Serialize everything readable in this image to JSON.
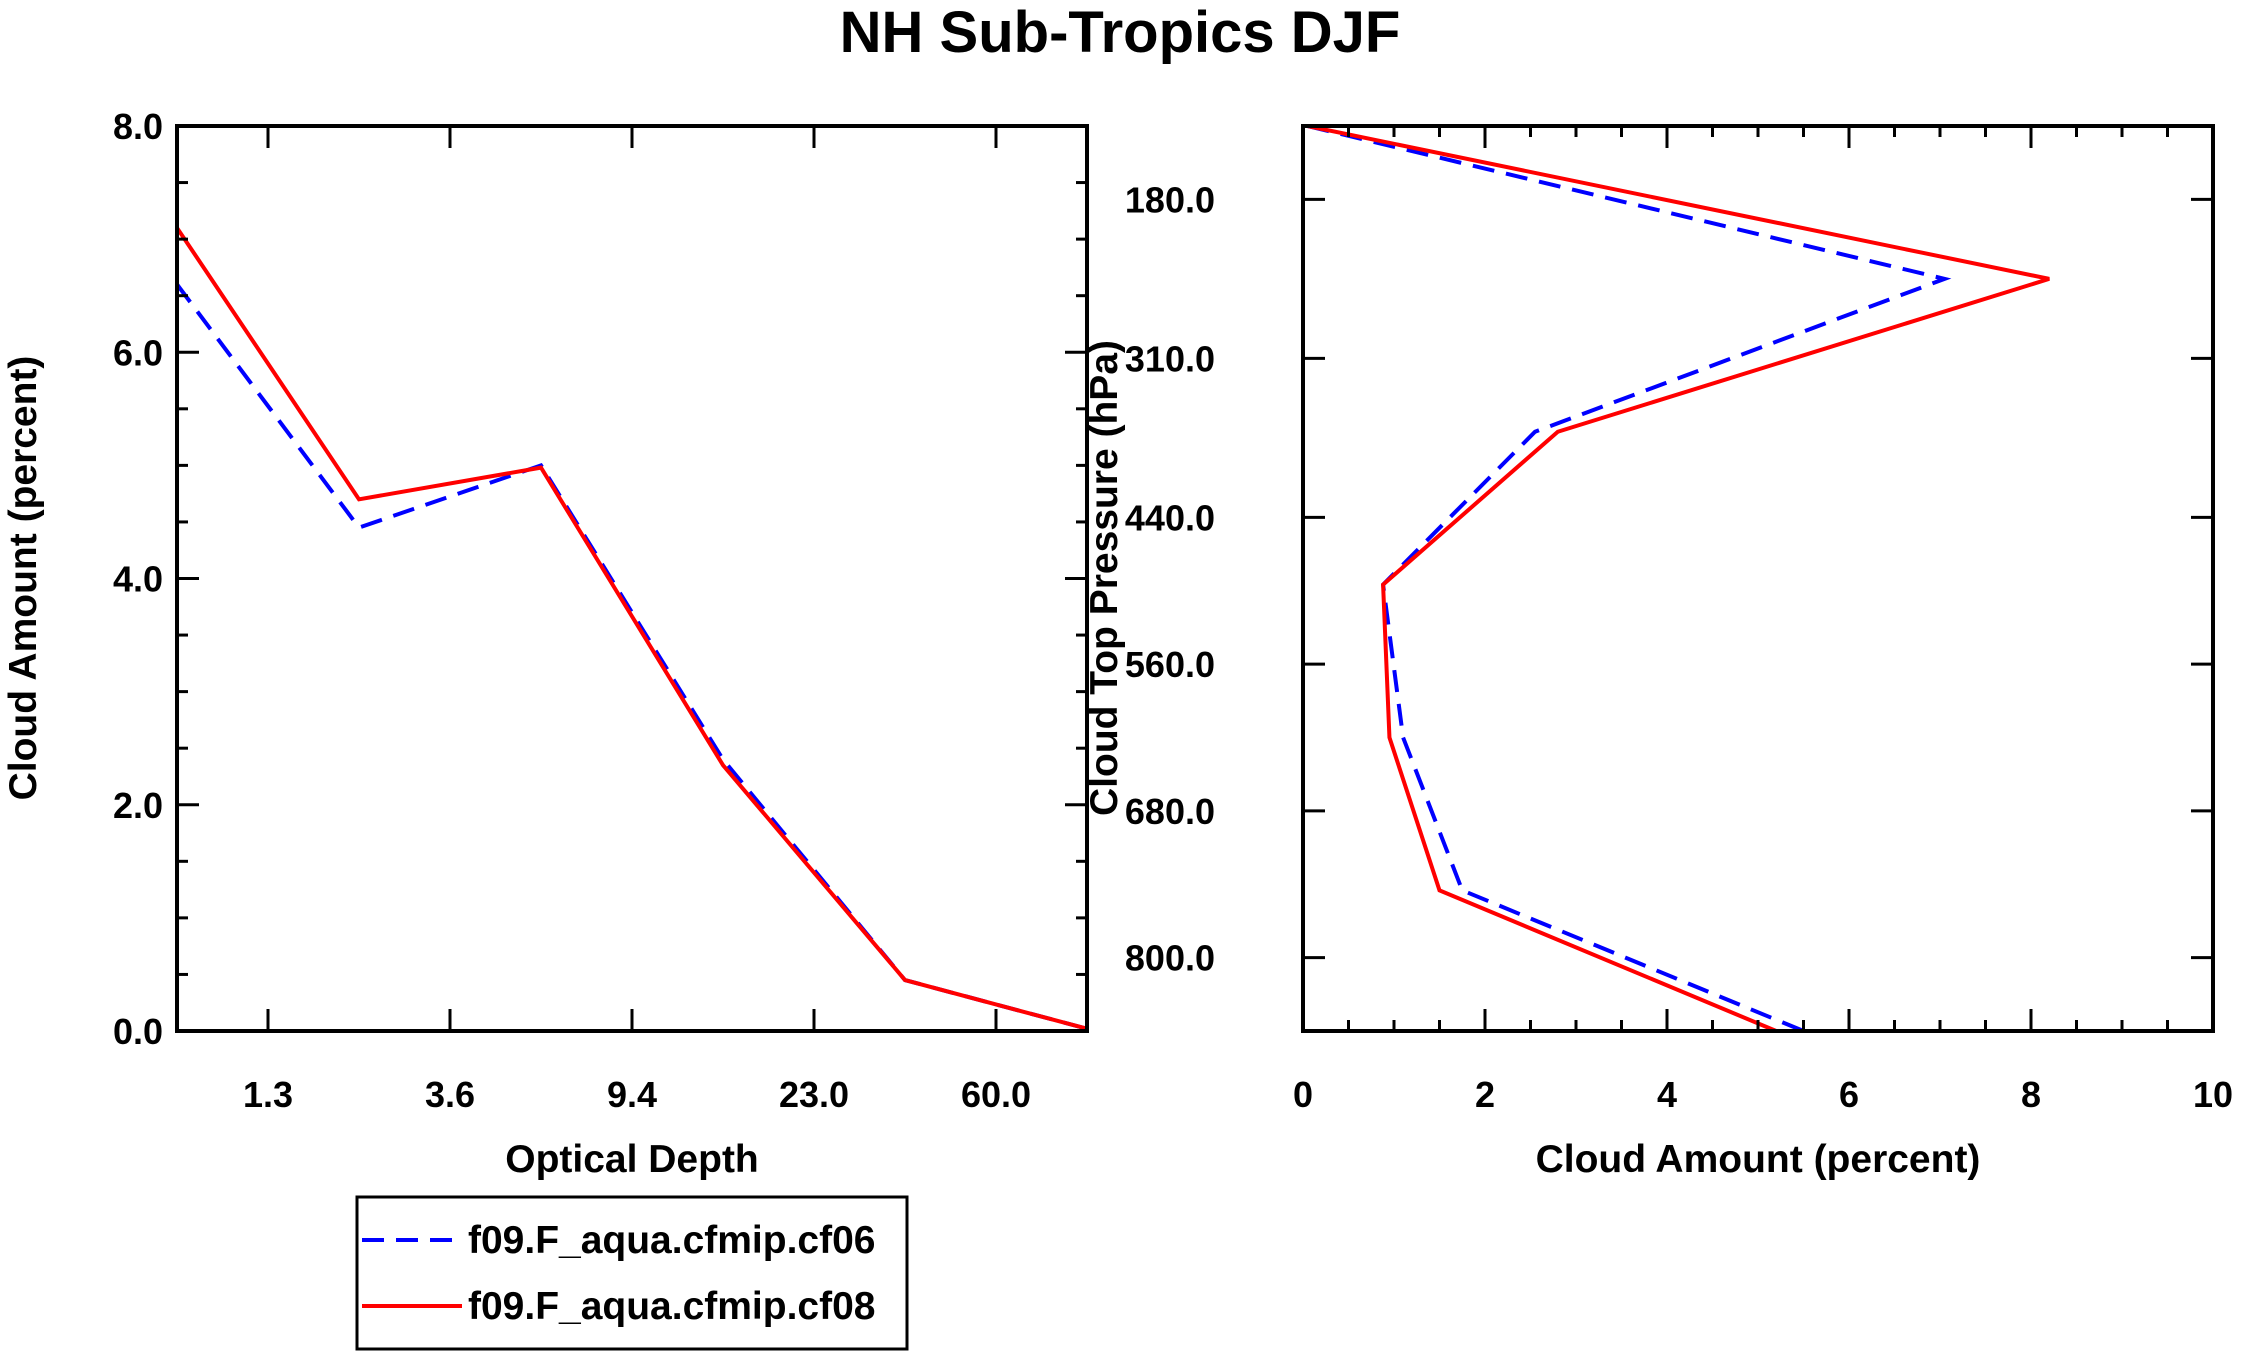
{
  "title": "NH Sub-Tropics DJF",
  "colors": {
    "series1": "#0000ff",
    "series2": "#ff0000",
    "axes": "#000000"
  },
  "chart_data": [
    {
      "type": "line",
      "panel": "left",
      "xlabel": "Optical Depth",
      "ylabel": "Cloud Amount (percent)",
      "x_index": [
        0,
        1,
        2,
        3,
        4,
        5,
        6
      ],
      "xticks": [
        {
          "pos": 0.5,
          "label": "1.3"
        },
        {
          "pos": 1.5,
          "label": "3.6"
        },
        {
          "pos": 2.5,
          "label": "9.4"
        },
        {
          "pos": 3.5,
          "label": "23.0"
        },
        {
          "pos": 4.5,
          "label": "60.0"
        }
      ],
      "xlim": [
        0,
        5
      ],
      "ylim": [
        0,
        8
      ],
      "yticks": [
        {
          "value": 0,
          "label": "0.0"
        },
        {
          "value": 2,
          "label": "2.0"
        },
        {
          "value": 4,
          "label": "4.0"
        },
        {
          "value": 6,
          "label": "6.0"
        },
        {
          "value": 8,
          "label": "8.0"
        }
      ],
      "series": [
        {
          "name": "f09.F_aqua.cfmip.cf06",
          "style": "dashed",
          "color": "#0000ff",
          "x": [
            0,
            1,
            2,
            3,
            4,
            5
          ],
          "values": [
            6.6,
            4.45,
            5.0,
            2.4,
            0.45,
            0.02
          ]
        },
        {
          "name": "f09.F_aqua.cfmip.cf08",
          "style": "solid",
          "color": "#ff0000",
          "x": [
            0,
            1,
            2,
            3,
            4,
            5
          ],
          "values": [
            7.1,
            4.7,
            4.98,
            2.35,
            0.45,
            0.02
          ]
        }
      ]
    },
    {
      "type": "line",
      "panel": "right",
      "xlabel": "Cloud Amount (percent)",
      "ylabel": "Cloud Top Pressure (hPa)",
      "xlim": [
        0,
        10
      ],
      "xticks": [
        {
          "value": 0,
          "label": "0"
        },
        {
          "value": 2,
          "label": "2"
        },
        {
          "value": 4,
          "label": "4"
        },
        {
          "value": 6,
          "label": "6"
        },
        {
          "value": 8,
          "label": "8"
        },
        {
          "value": 10,
          "label": "10"
        }
      ],
      "ylim": [
        120,
        860
      ],
      "yticks": [
        {
          "value": 180,
          "label": "180.0"
        },
        {
          "value": 310,
          "label": "310.0"
        },
        {
          "value": 440,
          "label": "440.0"
        },
        {
          "value": 560,
          "label": "560.0"
        },
        {
          "value": 680,
          "label": "680.0"
        },
        {
          "value": 800,
          "label": "800.0"
        }
      ],
      "series": [
        {
          "name": "f09.F_aqua.cfmip.cf06",
          "style": "dashed",
          "color": "#0000ff",
          "pressure": [
            120,
            245,
            370,
            495,
            620,
            745,
            860
          ],
          "values": [
            0.05,
            7.05,
            2.55,
            0.88,
            1.1,
            1.75,
            5.5
          ]
        },
        {
          "name": "f09.F_aqua.cfmip.cf08",
          "style": "solid",
          "color": "#ff0000",
          "pressure": [
            120,
            245,
            370,
            495,
            620,
            745,
            860
          ],
          "values": [
            0.05,
            8.2,
            2.8,
            0.88,
            0.95,
            1.5,
            5.2
          ]
        }
      ]
    }
  ],
  "legend": {
    "items": [
      {
        "label": "f09.F_aqua.cfmip.cf06",
        "style": "dashed",
        "color": "#0000ff"
      },
      {
        "label": "f09.F_aqua.cfmip.cf08",
        "style": "solid",
        "color": "#ff0000"
      }
    ]
  }
}
